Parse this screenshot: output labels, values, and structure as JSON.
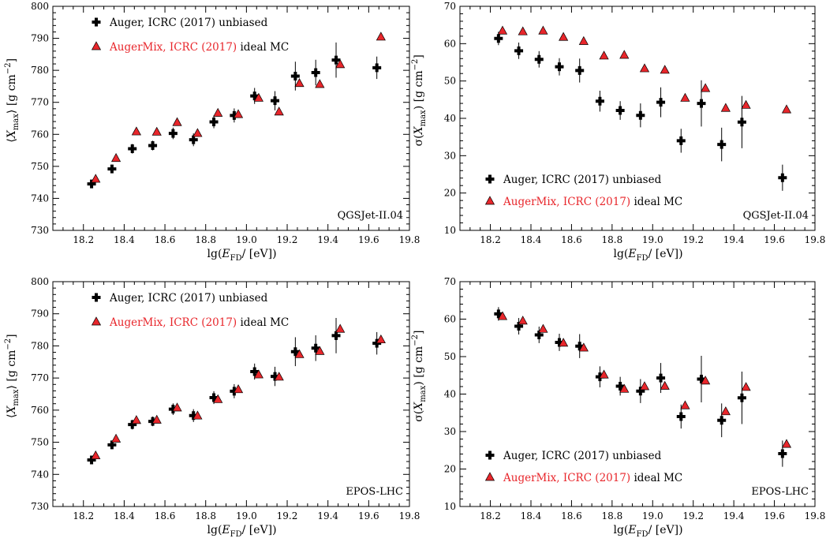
{
  "chart_data": [
    {
      "type": "scatter",
      "panel": "top-left",
      "xlabel": "lg(E_FD / [eV])",
      "ylabel": "⟨X_max⟩ [g cm^-2]",
      "xlim": [
        18.05,
        19.8
      ],
      "ylim": [
        730,
        800
      ],
      "xticks": [
        18.2,
        18.4,
        18.6,
        18.8,
        19.0,
        19.2,
        19.4,
        19.6,
        19.8
      ],
      "yticks": [
        730,
        740,
        750,
        760,
        770,
        780,
        790,
        800
      ],
      "model_label": "QGSJet-II.04",
      "model_label_position": "bottom-right",
      "legend_position": "top-left",
      "series": [
        {
          "name": "Auger, ICRC (2017) unbiased",
          "color": "#000000",
          "marker": "cross",
          "x": [
            18.24,
            18.34,
            18.44,
            18.54,
            18.64,
            18.74,
            18.84,
            18.94,
            19.04,
            19.14,
            19.24,
            19.34,
            19.44,
            19.64
          ],
          "y": [
            744.5,
            749.2,
            755.5,
            756.5,
            760.3,
            758.3,
            763.9,
            765.9,
            772.0,
            770.5,
            778.2,
            779.3,
            783.2,
            780.8
          ],
          "err": [
            1.2,
            1.3,
            1.5,
            1.5,
            1.8,
            2.0,
            2.0,
            2.2,
            2.5,
            3.0,
            4.5,
            4.0,
            5.5,
            3.5
          ]
        },
        {
          "name": "AugerMix, ICRC (2017) ideal MC",
          "color": "#e8262b",
          "marker": "triangle",
          "x": [
            18.26,
            18.36,
            18.46,
            18.56,
            18.66,
            18.76,
            18.86,
            18.96,
            19.06,
            19.16,
            19.26,
            19.36,
            19.46,
            19.66
          ],
          "y": [
            746.0,
            752.5,
            760.8,
            760.7,
            763.7,
            760.3,
            766.6,
            766.2,
            771.3,
            767.0,
            775.9,
            775.6,
            781.8,
            790.4
          ]
        }
      ]
    },
    {
      "type": "scatter",
      "panel": "top-right",
      "xlabel": "lg(E_FD / [eV])",
      "ylabel": "σ(X_max) [g cm^-2]",
      "xlim": [
        18.05,
        19.8
      ],
      "ylim": [
        10,
        70
      ],
      "xticks": [
        18.2,
        18.4,
        18.6,
        18.8,
        19.0,
        19.2,
        19.4,
        19.6,
        19.8
      ],
      "yticks": [
        10,
        20,
        30,
        40,
        50,
        60,
        70
      ],
      "model_label": "QGSJet-II.04",
      "model_label_position": "bottom-right",
      "legend_position": "bottom-left",
      "series": [
        {
          "name": "Auger, ICRC (2017) unbiased",
          "color": "#000000",
          "marker": "cross",
          "x": [
            18.24,
            18.34,
            18.44,
            18.54,
            18.64,
            18.74,
            18.84,
            18.94,
            19.04,
            19.14,
            19.24,
            19.34,
            19.44,
            19.64
          ],
          "y": [
            61.4,
            58.1,
            55.8,
            53.8,
            52.8,
            44.6,
            42.1,
            40.8,
            44.3,
            34.0,
            44.0,
            33.0,
            39.0,
            24.1
          ],
          "err": [
            1.8,
            2.2,
            2.2,
            2.3,
            3.2,
            2.8,
            2.5,
            3.2,
            4.0,
            3.2,
            6.2,
            4.5,
            7.0,
            3.5
          ]
        },
        {
          "name": "AugerMix, ICRC (2017) ideal MC",
          "color": "#e8262b",
          "marker": "triangle",
          "x": [
            18.26,
            18.36,
            18.46,
            18.56,
            18.66,
            18.76,
            18.86,
            18.96,
            19.06,
            19.16,
            19.26,
            19.36,
            19.46,
            19.66
          ],
          "y": [
            63.4,
            63.2,
            63.4,
            61.7,
            60.6,
            56.7,
            56.9,
            53.3,
            52.9,
            45.4,
            48.0,
            42.7,
            43.5,
            42.3
          ]
        }
      ]
    },
    {
      "type": "scatter",
      "panel": "bottom-left",
      "xlabel": "lg(E_FD / [eV])",
      "ylabel": "⟨X_max⟩ [g cm^-2]",
      "xlim": [
        18.05,
        19.8
      ],
      "ylim": [
        730,
        800
      ],
      "xticks": [
        18.2,
        18.4,
        18.6,
        18.8,
        19.0,
        19.2,
        19.4,
        19.6,
        19.8
      ],
      "yticks": [
        730,
        740,
        750,
        760,
        770,
        780,
        790,
        800
      ],
      "model_label": "EPOS-LHC",
      "model_label_position": "bottom-right",
      "legend_position": "top-left",
      "series": [
        {
          "name": "Auger, ICRC (2017) unbiased",
          "color": "#000000",
          "marker": "cross",
          "x": [
            18.24,
            18.34,
            18.44,
            18.54,
            18.64,
            18.74,
            18.84,
            18.94,
            19.04,
            19.14,
            19.24,
            19.34,
            19.44,
            19.64
          ],
          "y": [
            744.5,
            749.2,
            755.5,
            756.5,
            760.3,
            758.3,
            763.9,
            765.9,
            772.0,
            770.5,
            778.2,
            779.3,
            783.2,
            780.8
          ],
          "err": [
            1.2,
            1.3,
            1.5,
            1.5,
            1.8,
            2.0,
            2.0,
            2.2,
            2.5,
            3.0,
            4.5,
            4.0,
            5.5,
            3.5
          ]
        },
        {
          "name": "AugerMix, ICRC (2017) ideal MC",
          "color": "#e8262b",
          "marker": "triangle",
          "x": [
            18.26,
            18.36,
            18.46,
            18.56,
            18.66,
            18.76,
            18.86,
            18.96,
            19.06,
            19.16,
            19.26,
            19.36,
            19.46,
            19.66
          ],
          "y": [
            745.8,
            751.0,
            756.8,
            756.9,
            760.7,
            758.2,
            763.3,
            766.4,
            771.0,
            770.3,
            777.3,
            778.3,
            785.2,
            781.9
          ]
        }
      ]
    },
    {
      "type": "scatter",
      "panel": "bottom-right",
      "xlabel": "lg(E_FD / [eV])",
      "ylabel": "σ(X_max) [g cm^-2]",
      "xlim": [
        18.05,
        19.8
      ],
      "ylim": [
        10,
        70
      ],
      "xticks": [
        18.2,
        18.4,
        18.6,
        18.8,
        19.0,
        19.2,
        19.4,
        19.6,
        19.8
      ],
      "yticks": [
        10,
        20,
        30,
        40,
        50,
        60,
        70
      ],
      "model_label": "EPOS-LHC",
      "model_label_position": "bottom-right",
      "legend_position": "bottom-left",
      "series": [
        {
          "name": "Auger, ICRC (2017) unbiased",
          "color": "#000000",
          "marker": "cross",
          "x": [
            18.24,
            18.34,
            18.44,
            18.54,
            18.64,
            18.74,
            18.84,
            18.94,
            19.04,
            19.14,
            19.24,
            19.34,
            19.44,
            19.64
          ],
          "y": [
            61.4,
            58.1,
            55.8,
            53.8,
            52.8,
            44.6,
            42.1,
            40.8,
            44.3,
            34.0,
            44.0,
            33.0,
            39.0,
            24.1
          ],
          "err": [
            1.8,
            2.2,
            2.2,
            2.3,
            3.2,
            2.8,
            2.5,
            3.2,
            4.0,
            3.2,
            6.2,
            4.5,
            7.0,
            3.5
          ]
        },
        {
          "name": "AugerMix, ICRC (2017) ideal MC",
          "color": "#e8262b",
          "marker": "triangle",
          "x": [
            18.26,
            18.36,
            18.46,
            18.56,
            18.66,
            18.76,
            18.86,
            18.96,
            19.06,
            19.16,
            19.26,
            19.36,
            19.46,
            19.66
          ],
          "y": [
            60.7,
            59.5,
            57.3,
            53.6,
            52.3,
            45.1,
            41.3,
            42.0,
            42.1,
            36.9,
            43.5,
            35.3,
            41.8,
            26.6
          ]
        }
      ]
    }
  ],
  "legend_text": {
    "auger_name": "Auger, ICRC (2017)",
    "auger_tag": "unbiased",
    "mix_name": "AugerMix, ICRC (2017)",
    "mix_tag": "ideal MC"
  },
  "axis_titles": {
    "x": {
      "prefix": "lg(",
      "symbol": "E",
      "sub": "FD",
      "suffix": "/ [eV])"
    },
    "y_mean": {
      "prefix": "⟨",
      "symbol": "X",
      "sub": "max",
      "suffix": "⟩ [g cm",
      "sup": "−2",
      "end": "]"
    },
    "y_sigma": {
      "prefix": "σ(",
      "symbol": "X",
      "sub": "max",
      "suffix": ") [g cm",
      "sup": "−2",
      "end": "]"
    }
  }
}
